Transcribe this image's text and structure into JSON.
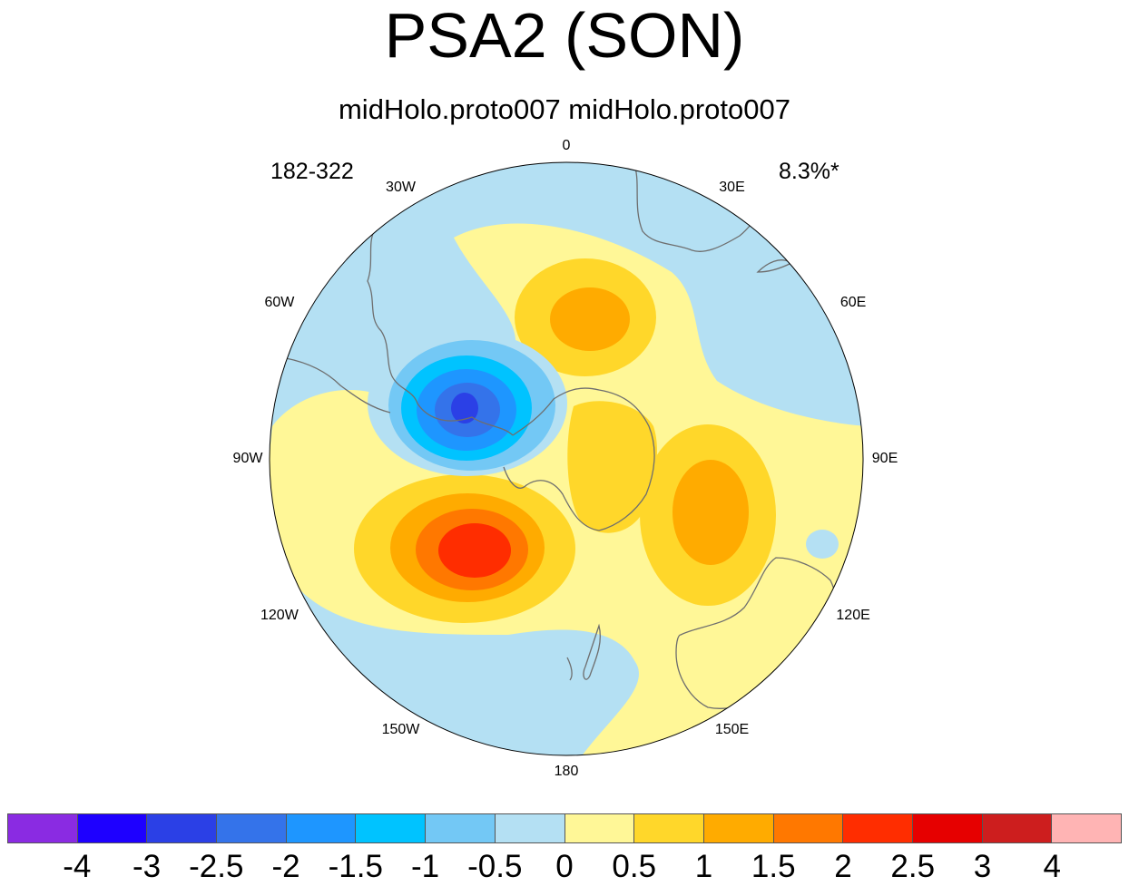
{
  "title": "PSA2 (SON)",
  "subtitle": "midHolo.proto007  midHolo.proto007",
  "left_corner": "182-322",
  "right_corner": "8.3%*",
  "lon_labels": [
    "0",
    "30E",
    "60E",
    "90E",
    "120E",
    "150E",
    "180",
    "150W",
    "120W",
    "90W",
    "60W",
    "30W"
  ],
  "colorbar": {
    "colors": [
      "#8a2be2",
      "#1e00ff",
      "#2b40e6",
      "#3473ea",
      "#1e96ff",
      "#00c3ff",
      "#73c8f5",
      "#b4e0f3",
      "#fff797",
      "#ffd72a",
      "#ffab00",
      "#ff7800",
      "#ff2d00",
      "#e60000",
      "#cd1e1e",
      "#ffb4b4"
    ],
    "labels": [
      "-4",
      "-3",
      "-2.5",
      "-2",
      "-1.5",
      "-1",
      "-0.5",
      "0",
      "0.5",
      "1",
      "1.5",
      "2",
      "2.5",
      "3",
      "4"
    ]
  },
  "fill_colors": {
    "ocean_negative": "#b4e0f3",
    "positive_weak": "#fff797",
    "positive_1": "#ffd72a",
    "positive_15": "#ffab00",
    "positive_2": "#ff7800",
    "positive_25": "#ff2d00",
    "negative_05": "#73c8f5",
    "negative_1": "#00c3ff",
    "negative_15": "#1e96ff",
    "negative_2": "#3473ea",
    "negative_25": "#2b40e6",
    "coastline": "#6e6e6e"
  }
}
